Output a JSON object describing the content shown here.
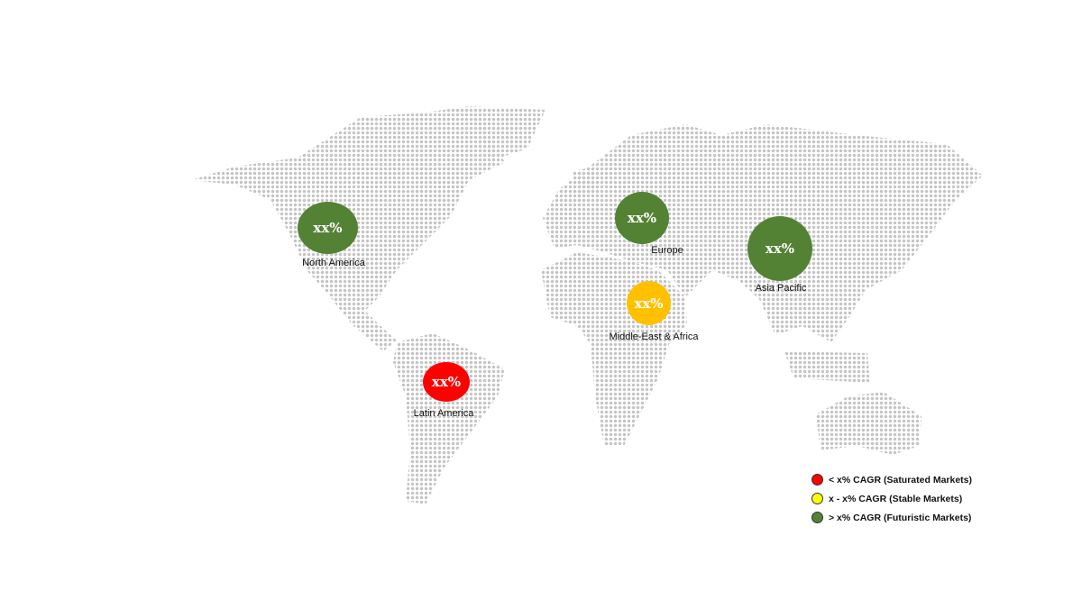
{
  "regions": [
    {
      "name": "North America",
      "value": "xx%",
      "color": "#548235"
    },
    {
      "name": "Europe",
      "value": "xx%",
      "color": "#548235"
    },
    {
      "name": "Asia Pacific",
      "value": "xx%",
      "color": "#548235"
    },
    {
      "name": "Middle-East & Africa",
      "value": "xx%",
      "color": "#FFC000"
    },
    {
      "name": "Latin America",
      "value": "xx%",
      "color": "#FF0000"
    }
  ],
  "legend": [
    {
      "label": "< x% CAGR (Saturated Markets)",
      "color": "#FF0000"
    },
    {
      "label": "x - x% CAGR (Stable Markets)",
      "color": "#FFFF00"
    },
    {
      "label": "> x% CAGR (Futuristic Markets)",
      "color": "#548235"
    }
  ],
  "map_color": "#C4C4C4"
}
